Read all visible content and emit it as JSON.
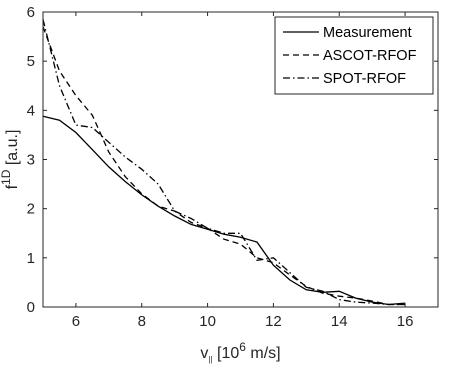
{
  "chart_data": {
    "type": "line",
    "xlabel": {
      "main": "v",
      "sub": "||",
      "bracket": " [10",
      "sup": "6",
      "unit": " m/s]"
    },
    "ylabel": {
      "main": "f",
      "sup": "1D",
      "unit": " [a.u.]"
    },
    "xlim": [
      5,
      17
    ],
    "ylim": [
      0,
      6
    ],
    "xticks": [
      6,
      8,
      10,
      12,
      14,
      16
    ],
    "yticks": [
      0,
      1,
      2,
      3,
      4,
      5,
      6
    ],
    "grid": false,
    "legend_position": "top-right",
    "series": [
      {
        "name": "Measurement",
        "style": "solid",
        "x": [
          5.0,
          5.5,
          6.0,
          6.5,
          7.0,
          7.5,
          8.0,
          8.5,
          9.0,
          9.5,
          10.0,
          10.5,
          11.0,
          11.5,
          12.0,
          12.5,
          13.0,
          13.5,
          14.0,
          14.5,
          15.0,
          15.5,
          16.0
        ],
        "y": [
          3.88,
          3.8,
          3.55,
          3.2,
          2.85,
          2.55,
          2.28,
          2.05,
          1.85,
          1.68,
          1.58,
          1.48,
          1.42,
          1.32,
          0.85,
          0.55,
          0.35,
          0.3,
          0.32,
          0.18,
          0.1,
          0.05,
          0.08
        ]
      },
      {
        "name": "ASCOT-RFOF",
        "style": "dashed",
        "x": [
          5.0,
          5.5,
          6.0,
          6.5,
          7.0,
          7.5,
          8.0,
          8.5,
          9.0,
          9.5,
          10.0,
          10.5,
          11.0,
          11.5,
          12.0,
          12.5,
          13.0,
          13.5,
          14.0,
          14.5,
          15.0,
          15.5,
          16.0
        ],
        "y": [
          5.7,
          4.8,
          4.3,
          3.9,
          3.15,
          2.65,
          2.3,
          2.05,
          1.95,
          1.72,
          1.6,
          1.38,
          1.28,
          1.0,
          0.9,
          0.65,
          0.42,
          0.28,
          0.22,
          0.18,
          0.12,
          0.05,
          0.05
        ]
      },
      {
        "name": "SPOT-RFOF",
        "style": "dashdot",
        "x": [
          5.0,
          5.5,
          6.0,
          6.5,
          7.0,
          7.5,
          8.0,
          8.5,
          9.0,
          9.5,
          10.0,
          10.5,
          11.0,
          11.5,
          12.0,
          12.5,
          13.0,
          13.5,
          14.0,
          14.5,
          15.0,
          15.5,
          16.0
        ],
        "y": [
          5.85,
          4.5,
          3.7,
          3.65,
          3.35,
          3.05,
          2.8,
          2.5,
          1.95,
          1.8,
          1.6,
          1.5,
          1.5,
          0.95,
          1.0,
          0.7,
          0.4,
          0.32,
          0.15,
          0.1,
          0.08,
          0.05,
          0.05
        ]
      }
    ]
  }
}
